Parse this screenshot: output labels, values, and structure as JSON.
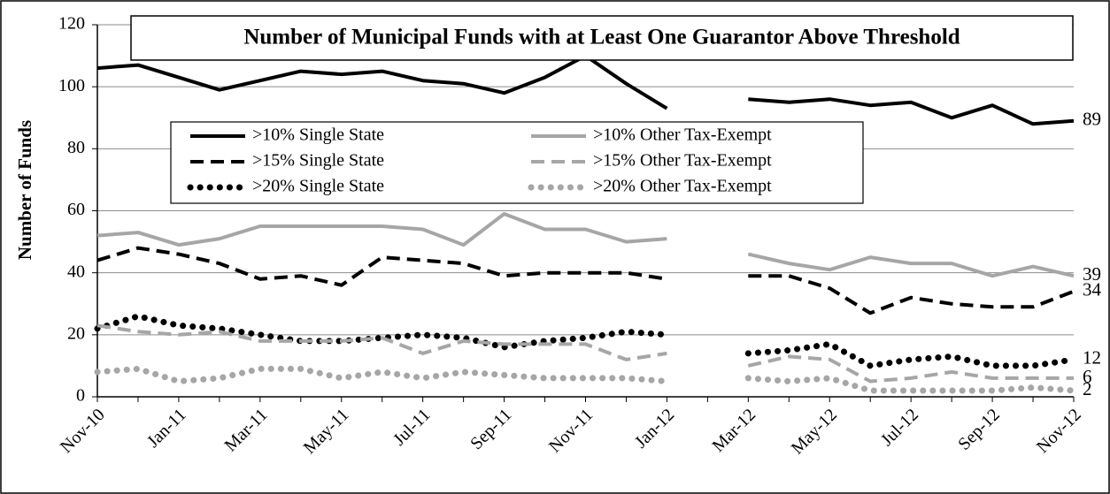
{
  "chart_data": {
    "type": "line",
    "title": "Number of Municipal Funds with at Least One Guarantor Above Threshold",
    "ylabel": "Number of  Funds",
    "categories": [
      "Nov-10",
      null,
      "Jan-11",
      null,
      "Mar-11",
      null,
      "May-11",
      null,
      "Jul-11",
      null,
      "Sep-11",
      null,
      "Nov-11",
      null,
      "Jan-12",
      null,
      "Mar-12",
      null,
      "May-12",
      null,
      "Jul-12",
      null,
      "Sep-12",
      null,
      "Nov-12"
    ],
    "ylim": [
      0,
      120
    ],
    "yticks": [
      0,
      20,
      40,
      60,
      80,
      100,
      120
    ],
    "grid": true,
    "label_last": true,
    "series": [
      {
        "name": ">10% Single State",
        "color": "#000000",
        "dash": "solid",
        "values": [
          106,
          107,
          103,
          99,
          102,
          105,
          104,
          105,
          102,
          101,
          98,
          103,
          110,
          101,
          93,
          null,
          96,
          95,
          96,
          94,
          95,
          90,
          94,
          88,
          89
        ]
      },
      {
        "name": ">15% Single State",
        "color": "#000000",
        "dash": "dashed",
        "values": [
          44,
          48,
          46,
          43,
          38,
          39,
          36,
          45,
          44,
          43,
          39,
          40,
          40,
          40,
          38,
          null,
          39,
          39,
          35,
          27,
          32,
          30,
          29,
          29,
          34
        ]
      },
      {
        "name": ">20% Single State",
        "color": "#000000",
        "dash": "dotted",
        "values": [
          22,
          26,
          23,
          22,
          20,
          18,
          18,
          19,
          20,
          19,
          16,
          18,
          19,
          21,
          20,
          null,
          14,
          15,
          17,
          10,
          12,
          13,
          10,
          10,
          12
        ]
      },
      {
        "name": ">10% Other Tax-Exempt",
        "color": "#a6a6a6",
        "dash": "solid",
        "values": [
          52,
          53,
          49,
          51,
          55,
          55,
          55,
          55,
          54,
          49,
          59,
          54,
          54,
          50,
          51,
          null,
          46,
          43,
          41,
          45,
          43,
          43,
          39,
          42,
          39
        ]
      },
      {
        "name": ">15% Other Tax-Exempt",
        "color": "#a6a6a6",
        "dash": "dashed",
        "values": [
          23,
          21,
          20,
          21,
          18,
          18,
          18,
          19,
          14,
          18,
          17,
          17,
          17,
          12,
          14,
          null,
          10,
          13,
          12,
          5,
          6,
          8,
          6,
          6,
          6
        ]
      },
      {
        "name": ">20% Other Tax-Exempt",
        "color": "#a6a6a6",
        "dash": "dotted",
        "values": [
          8,
          9,
          5,
          6,
          9,
          9,
          6,
          8,
          6,
          8,
          7,
          6,
          6,
          6,
          5,
          null,
          6,
          5,
          6,
          2,
          2,
          2,
          2,
          3,
          2
        ]
      }
    ]
  }
}
